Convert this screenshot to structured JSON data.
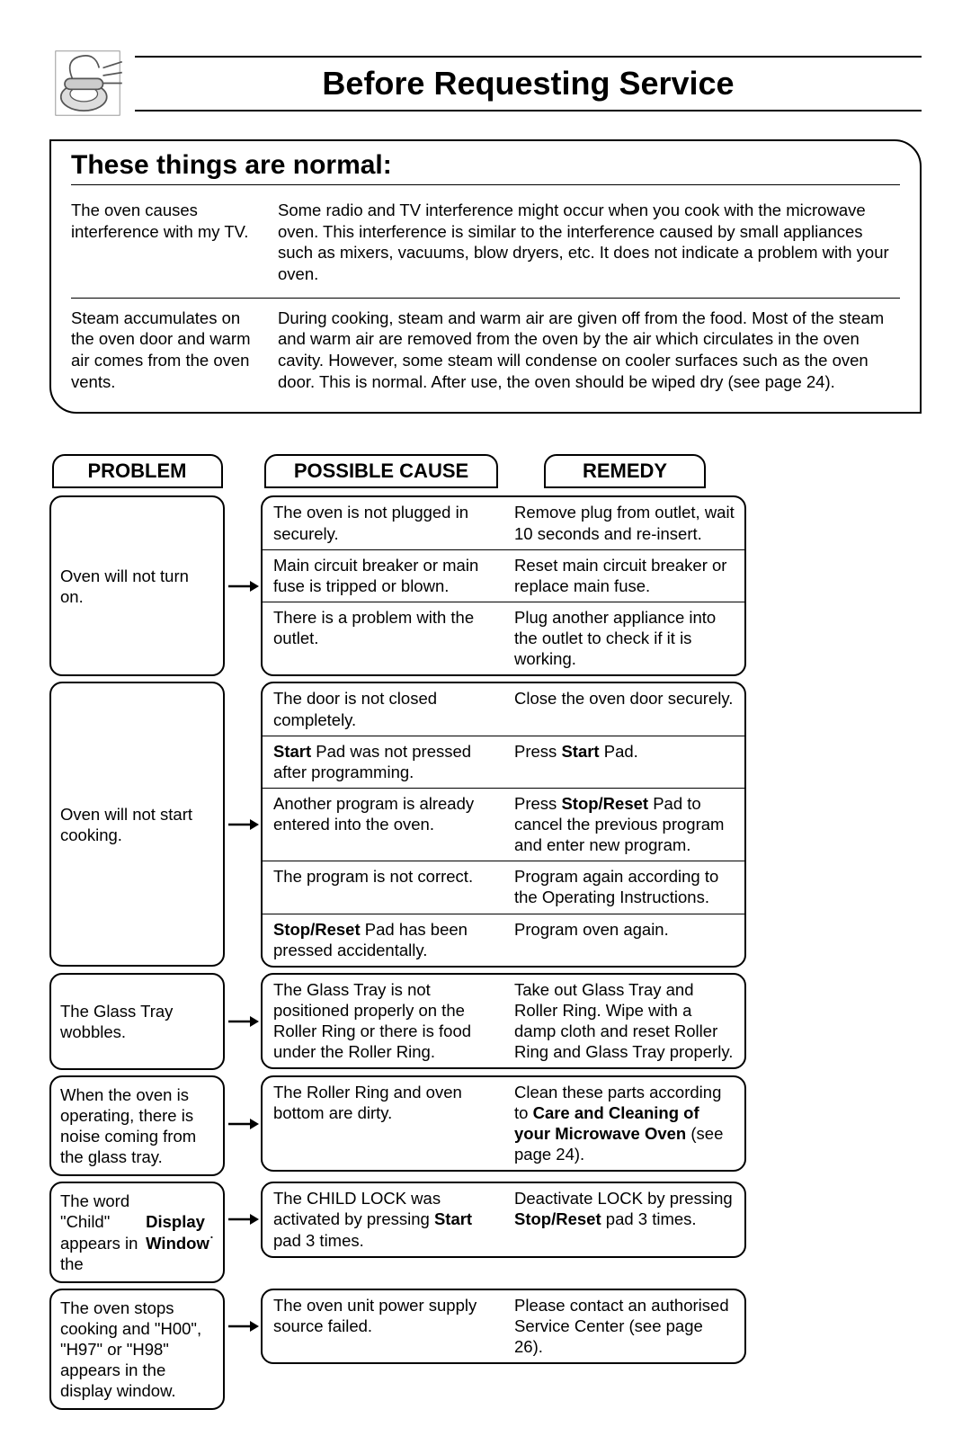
{
  "title": "Before Requesting Service",
  "normal": {
    "heading": "These things are normal:",
    "rows": [
      {
        "label": "The oven causes interference with my TV.",
        "desc": "Some radio and TV interference might occur when you cook with the microwave oven. This interference is similar to the interference caused by small appliances such as mixers, vacuums, blow dryers, etc. It does not indicate a problem with your oven."
      },
      {
        "label": "Steam accumulates on the oven door and warm air comes from the oven vents.",
        "desc": "During cooking, steam and warm air are given off from the food. Most of the steam and warm air are removed from the oven by the air which circulates in the oven cavity. However, some steam will condense on cooler surfaces such as the oven door. This is normal. After use, the oven should be wiped dry (see page 24)."
      }
    ]
  },
  "headers": {
    "problem": "PROBLEM",
    "cause": "POSSIBLE CAUSE",
    "remedy": "REMEDY"
  },
  "sections": [
    {
      "problem": "Oven will not turn on.",
      "rows": [
        {
          "cause": "The oven is not plugged in securely.",
          "remedy": "Remove plug from outlet, wait 10 seconds and re-insert."
        },
        {
          "cause": "Main circuit breaker or main fuse is tripped or blown.",
          "remedy": "Reset main circuit breaker or replace main fuse."
        },
        {
          "cause": "There is a problem with the outlet.",
          "remedy": "Plug another appliance into the outlet to check if it is working."
        }
      ]
    },
    {
      "problem": "Oven will not start cooking.",
      "rows": [
        {
          "cause": "The door is not closed completely.",
          "remedy": "Close the oven door securely."
        },
        {
          "cause_html": "<b>Start</b> Pad was not pressed after programming.",
          "remedy_html": "Press <b>Start</b> Pad."
        },
        {
          "cause": "Another program is already entered into the oven.",
          "remedy_html": "Press <b>Stop/Reset</b> Pad to cancel the previous program and enter new program."
        },
        {
          "cause": "The program is not correct.",
          "remedy": "Program again according to the Operating Instructions."
        },
        {
          "cause_html": "<b>Stop/Reset</b> Pad has been pressed accidentally.",
          "remedy": "Program oven again."
        }
      ]
    },
    {
      "problem": "The Glass Tray wobbles.",
      "rows": [
        {
          "cause": "The Glass Tray is not positioned properly on the Roller Ring or there is food under the Roller Ring.",
          "remedy": "Take out Glass Tray and Roller Ring. Wipe with a damp cloth and reset Roller Ring and Glass Tray properly."
        }
      ]
    },
    {
      "problem": "When the oven is operating, there is noise coming from the glass tray.",
      "rows": [
        {
          "cause": "The Roller Ring and oven bottom are dirty.",
          "remedy_html": "Clean these parts according to <b>Care and Cleaning of your Microwave Oven</b> (see page 24)."
        }
      ]
    },
    {
      "problem_html": "The word \"Child\" appears in the <b>Display Window</b>.",
      "rows": [
        {
          "cause_html": "The CHILD LOCK was activated by pressing <b>Start</b> pad 3 times.",
          "remedy_html": "Deactivate LOCK by pressing <b>Stop/Reset</b> pad 3 times."
        }
      ]
    },
    {
      "problem": "The oven stops cooking and \"H00\", \"H97\" or \"H98\" appears in the display window.",
      "rows": [
        {
          "cause": "The oven unit power supply source failed.",
          "remedy": "Please contact an authorised Service Center (see page 26)."
        }
      ]
    }
  ]
}
